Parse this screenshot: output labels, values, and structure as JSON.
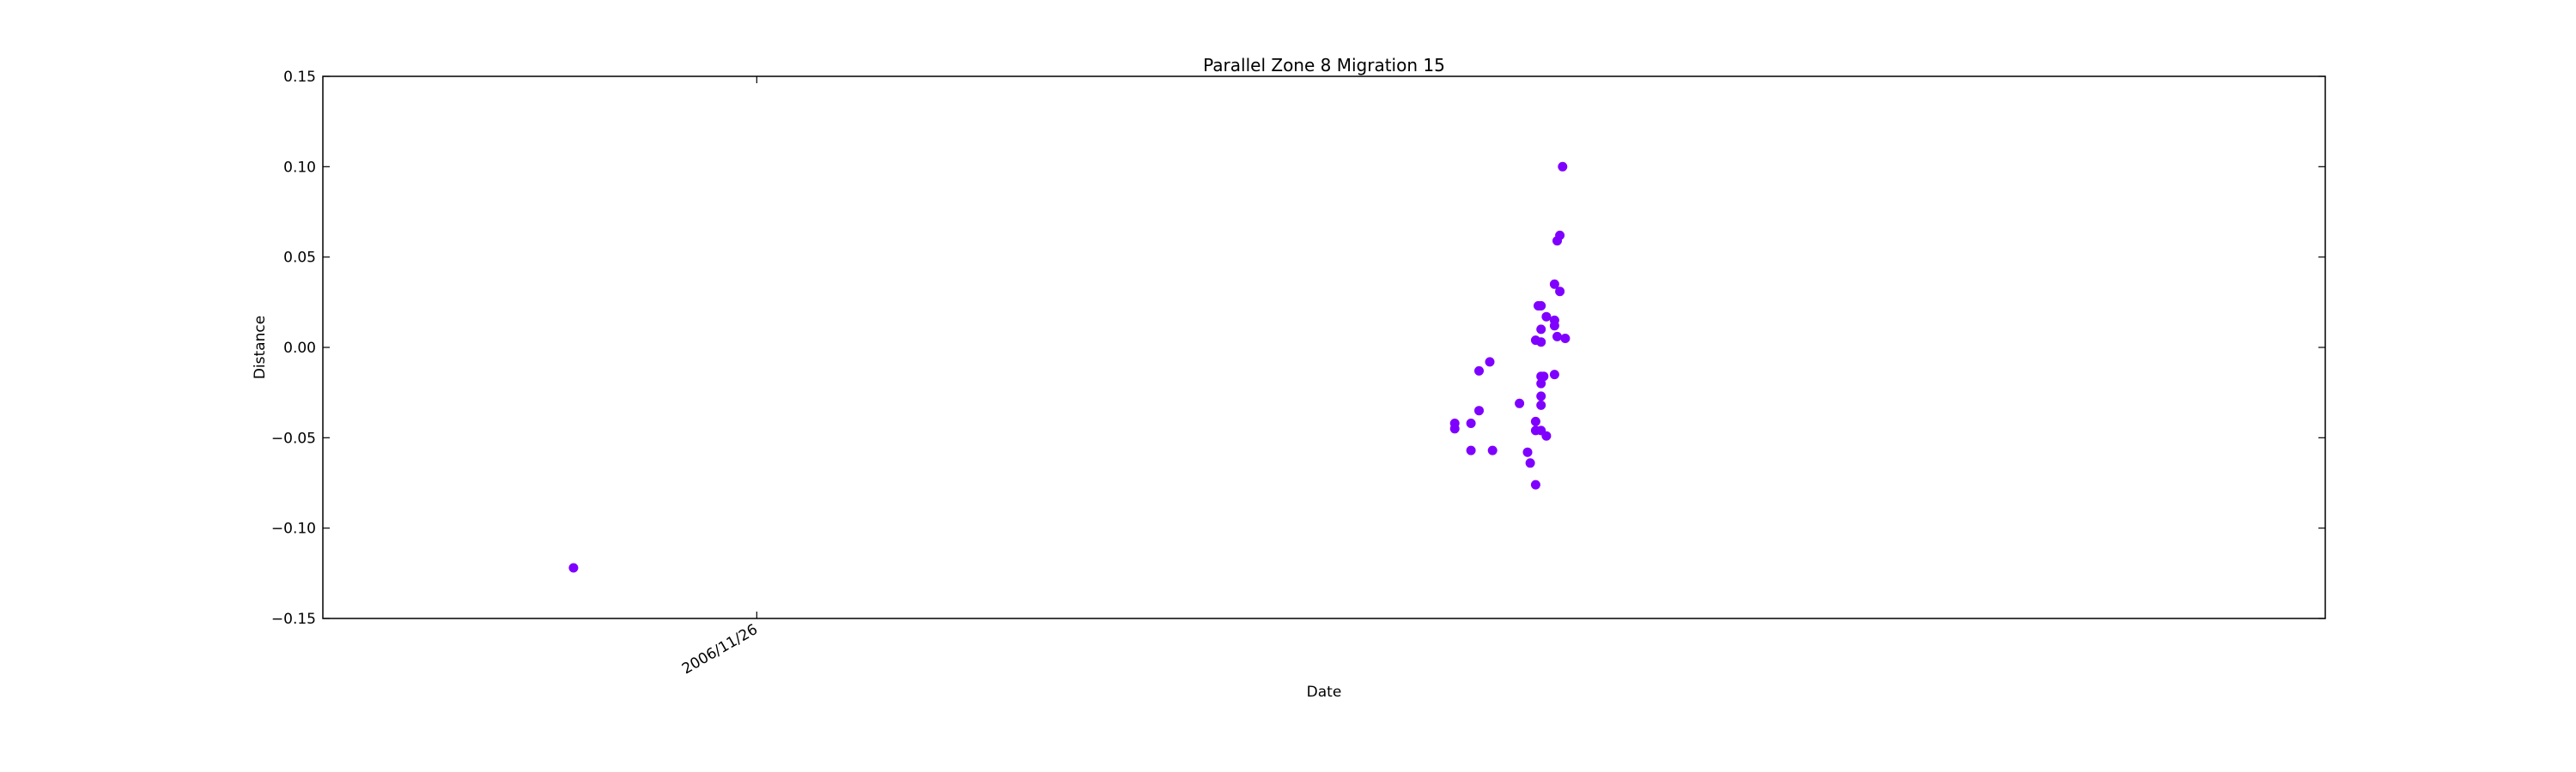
{
  "chart_data": {
    "type": "scatter",
    "title": "Parallel Zone 8 Migration 15",
    "xlabel": "Date",
    "ylabel": "Distance",
    "ylim": [
      -0.15,
      0.15
    ],
    "yticks": [
      -0.15,
      -0.1,
      -0.05,
      0.0,
      0.05,
      0.1,
      0.15
    ],
    "ytick_labels": [
      "−0.15",
      "−0.10",
      "−0.05",
      "0.00",
      "0.05",
      "0.10",
      "0.15"
    ],
    "xlim": [
      "2006-06-18",
      "2008-06-30"
    ],
    "xticks": [
      "2006-11-26"
    ],
    "xtick_labels": [
      "2006/11/26"
    ],
    "grid": false,
    "legend": "none",
    "marker_color": "#7f00ff",
    "series": [
      {
        "points": [
          {
            "x": "2006-09-19",
            "y": -0.122
          },
          {
            "x": "2007-08-12",
            "y": -0.042
          },
          {
            "x": "2007-08-12",
            "y": -0.045
          },
          {
            "x": "2007-08-18",
            "y": -0.057
          },
          {
            "x": "2007-08-18",
            "y": -0.042
          },
          {
            "x": "2007-08-21",
            "y": -0.013
          },
          {
            "x": "2007-08-21",
            "y": -0.035
          },
          {
            "x": "2007-08-25",
            "y": -0.008
          },
          {
            "x": "2007-08-26",
            "y": -0.057
          },
          {
            "x": "2007-09-05",
            "y": -0.031
          },
          {
            "x": "2007-09-08",
            "y": -0.058
          },
          {
            "x": "2007-09-09",
            "y": -0.064
          },
          {
            "x": "2007-09-11",
            "y": -0.076
          },
          {
            "x": "2007-09-11",
            "y": -0.041
          },
          {
            "x": "2007-09-11",
            "y": -0.046
          },
          {
            "x": "2007-09-11",
            "y": 0.004
          },
          {
            "x": "2007-09-12",
            "y": 0.023
          },
          {
            "x": "2007-09-13",
            "y": 0.023
          },
          {
            "x": "2007-09-13",
            "y": 0.01
          },
          {
            "x": "2007-09-13",
            "y": 0.003
          },
          {
            "x": "2007-09-13",
            "y": -0.016
          },
          {
            "x": "2007-09-13",
            "y": -0.02
          },
          {
            "x": "2007-09-13",
            "y": -0.027
          },
          {
            "x": "2007-09-13",
            "y": -0.032
          },
          {
            "x": "2007-09-13",
            "y": -0.046
          },
          {
            "x": "2007-09-14",
            "y": -0.016
          },
          {
            "x": "2007-09-15",
            "y": -0.049
          },
          {
            "x": "2007-09-15",
            "y": 0.017
          },
          {
            "x": "2007-09-18",
            "y": 0.015
          },
          {
            "x": "2007-09-18",
            "y": 0.012
          },
          {
            "x": "2007-09-18",
            "y": 0.035
          },
          {
            "x": "2007-09-18",
            "y": -0.015
          },
          {
            "x": "2007-09-19",
            "y": 0.059
          },
          {
            "x": "2007-09-19",
            "y": 0.006
          },
          {
            "x": "2007-09-20",
            "y": 0.031
          },
          {
            "x": "2007-09-20",
            "y": 0.062
          },
          {
            "x": "2007-09-21",
            "y": 0.1
          },
          {
            "x": "2007-09-22",
            "y": 0.005
          }
        ]
      }
    ]
  }
}
